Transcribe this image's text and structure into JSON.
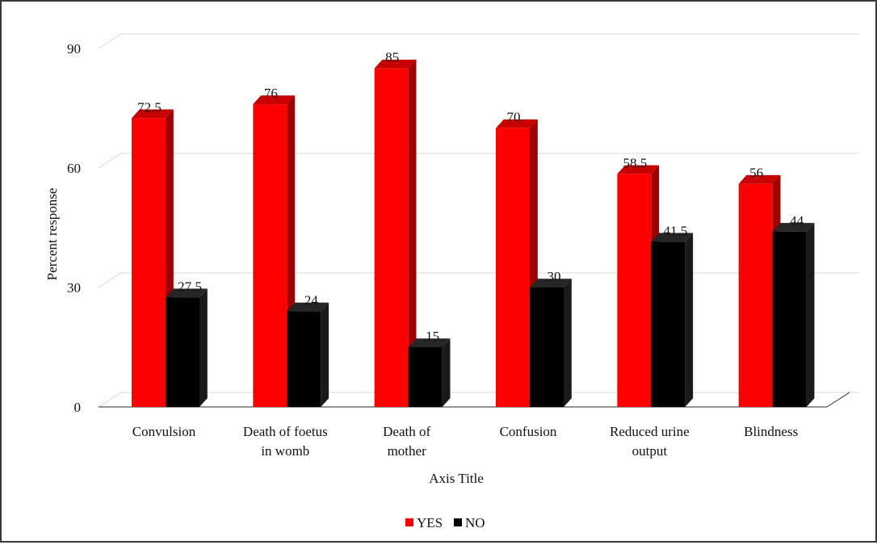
{
  "chart_data": {
    "type": "bar",
    "style": "3d-clustered-column",
    "categories": [
      [
        "Convulsion"
      ],
      [
        "Death of foetus",
        "in womb"
      ],
      [
        "Death of",
        "mother"
      ],
      [
        "Confusion"
      ],
      [
        "Reduced urine",
        "output"
      ],
      [
        "Blindness"
      ]
    ],
    "series": [
      {
        "name": "YES",
        "color": "#ff0000",
        "values": [
          72.5,
          76,
          85,
          70,
          58.5,
          56
        ],
        "labels": [
          "72.5",
          "76",
          "85",
          "70",
          "58.5",
          "56"
        ]
      },
      {
        "name": "NO",
        "color": "#000000",
        "values": [
          27.5,
          24,
          15,
          30,
          41.5,
          44
        ],
        "labels": [
          "27.5",
          "24",
          "15",
          "30",
          "41.5",
          "44"
        ]
      }
    ],
    "title": "",
    "xlabel": "Axis Title",
    "ylabel": "Percent response",
    "ylim": [
      0,
      90
    ],
    "yticks": [
      "0",
      "30",
      "60",
      "90"
    ],
    "grid": true,
    "legend": "bottom"
  }
}
